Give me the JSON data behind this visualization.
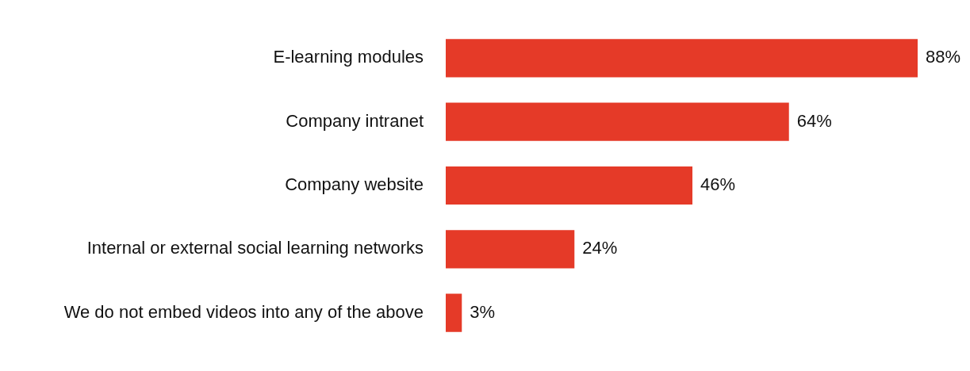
{
  "chart_data": {
    "type": "bar",
    "orientation": "horizontal",
    "categories": [
      "E-learning modules",
      "Company intranet",
      "Company website",
      "Internal or external social learning networks",
      "We do not embed videos into any of the above"
    ],
    "values": [
      88,
      64,
      46,
      24,
      3
    ],
    "value_labels": [
      "88%",
      "64%",
      "46%",
      "24%",
      "3%"
    ],
    "color": "#e53a28",
    "tick_labels": "y",
    "legend": false
  }
}
